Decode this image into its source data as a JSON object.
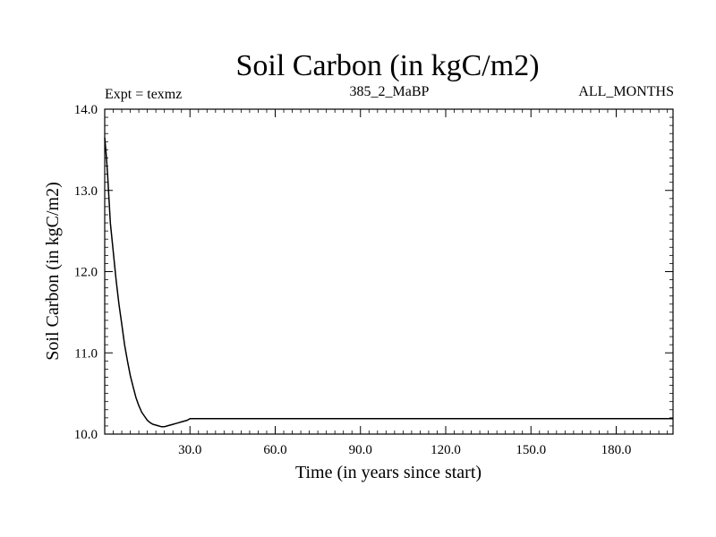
{
  "header": {
    "expt_label": "Expt = texmz",
    "run_label": "385_2_MaBP",
    "months_label": "ALL_MONTHS"
  },
  "chart_data": {
    "type": "line",
    "title": "Soil Carbon (in kgC/m2)",
    "xlabel": "Time (in years since start)",
    "ylabel": "Soil Carbon (in kgC/m2)",
    "xlim": [
      0,
      200
    ],
    "ylim": [
      10.0,
      14.0
    ],
    "x_ticks": [
      30,
      60,
      90,
      120,
      150,
      180
    ],
    "x_tick_labels": [
      "30.0",
      "60.0",
      "90.0",
      "120.0",
      "150.0",
      "180.0"
    ],
    "y_ticks": [
      10,
      11,
      12,
      13,
      14
    ],
    "y_tick_labels": [
      "10.0",
      "11.0",
      "12.0",
      "13.0",
      "14.0"
    ],
    "grid": false,
    "series": [
      {
        "x": [
          0,
          0.5,
          1,
          2,
          3,
          4,
          5,
          6,
          7,
          8,
          9,
          10,
          11,
          12,
          13,
          14,
          15,
          16,
          17,
          18,
          19,
          20,
          21,
          22,
          23,
          24,
          25,
          26,
          27,
          28,
          29,
          30,
          35,
          40,
          60,
          100,
          150,
          200
        ],
        "y": [
          13.65,
          13.45,
          13.2,
          12.6,
          12.25,
          11.9,
          11.6,
          11.35,
          11.1,
          10.9,
          10.72,
          10.58,
          10.45,
          10.35,
          10.27,
          10.22,
          10.17,
          10.14,
          10.12,
          10.11,
          10.1,
          10.09,
          10.09,
          10.1,
          10.11,
          10.12,
          10.13,
          10.14,
          10.15,
          10.16,
          10.17,
          10.19,
          10.19,
          10.19,
          10.19,
          10.19,
          10.19,
          10.19
        ]
      }
    ]
  }
}
